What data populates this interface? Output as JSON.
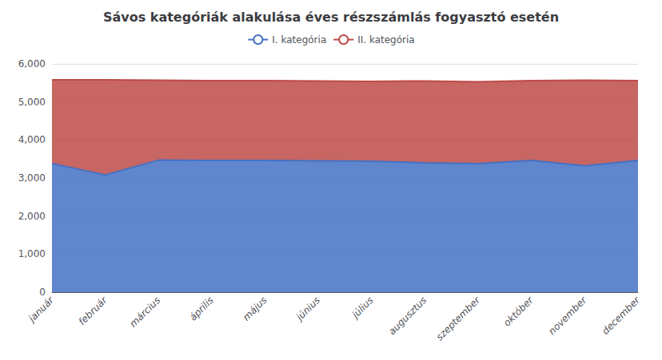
{
  "chart_data": {
    "type": "area",
    "title": "Sávos kategóriák alakulása éves részszámlás fogyasztó esetén",
    "categories": [
      "január",
      "február",
      "március",
      "április",
      "május",
      "június",
      "július",
      "augusztus",
      "szeptember",
      "október",
      "november",
      "december"
    ],
    "series": [
      {
        "name": "I. kategória",
        "color": "#4472C4",
        "values": [
          3380,
          3080,
          3470,
          3460,
          3460,
          3450,
          3440,
          3400,
          3380,
          3460,
          3320,
          3460
        ]
      },
      {
        "name": "II. kategória",
        "color": "#BE4B48",
        "values": [
          2200,
          2500,
          2100,
          2100,
          2100,
          2100,
          2100,
          2150,
          2150,
          2100,
          2250,
          2100
        ]
      }
    ],
    "stacked": true,
    "ylim": [
      0,
      6000
    ],
    "yticks": [
      0,
      1000,
      2000,
      3000,
      4000,
      5000,
      6000
    ],
    "grid": true,
    "legend": "top"
  }
}
